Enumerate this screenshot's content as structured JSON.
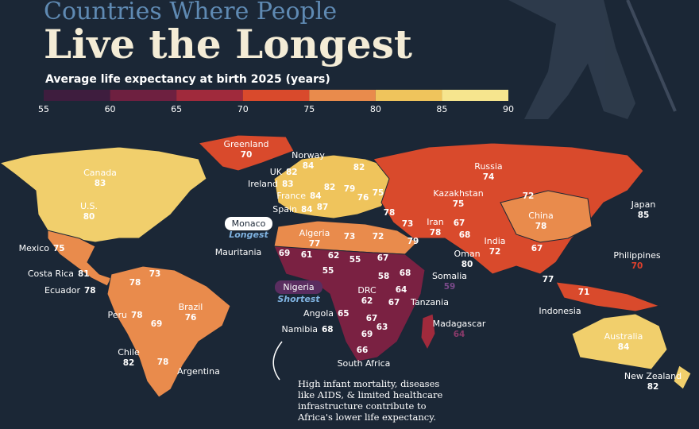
{
  "title_line1": "Countries Where People",
  "title_line2": "Live the Longest",
  "subtitle": "Average life expectancy at birth 2025 (years)",
  "scale": {
    "ticks": [
      55,
      60,
      65,
      70,
      75,
      80,
      85,
      90
    ],
    "colors": [
      "#3e1d3e",
      "#6e2040",
      "#a02a3c",
      "#d94a2c",
      "#e98b4c",
      "#efc45c",
      "#f6e58e"
    ]
  },
  "labels": [
    {
      "name": "Greenland",
      "value": 70
    },
    {
      "name": "Norway",
      "value": 84
    },
    {
      "value": 82
    },
    {
      "name": "UK",
      "value": 82
    },
    {
      "name": "Ireland",
      "value": 83
    },
    {
      "value": 82
    },
    {
      "value": 79
    },
    {
      "name": "France",
      "value": 84
    },
    {
      "value": 76
    },
    {
      "value": 75
    },
    {
      "name": "Spain",
      "value": 84
    },
    {
      "value": 87
    },
    {
      "value": 78
    },
    {
      "name": "Russia",
      "value": 74
    },
    {
      "value": 72
    },
    {
      "name": "Kazakhstan",
      "value": 75
    },
    {
      "name": "Canada",
      "value": 83
    },
    {
      "name": "U.S.",
      "value": 80
    },
    {
      "name": "Japan",
      "value": 85
    },
    {
      "name": "China",
      "value": 78
    },
    {
      "name": "Iran",
      "value": 78
    },
    {
      "value": 73
    },
    {
      "value": 67
    },
    {
      "value": 68
    },
    {
      "name": "Algeria",
      "value": 77
    },
    {
      "value": 73
    },
    {
      "value": 72
    },
    {
      "value": 79
    },
    {
      "name": "India",
      "value": 72
    },
    {
      "value": 67
    },
    {
      "name": "Oman",
      "value": 80
    },
    {
      "name": "Mexico",
      "value": 75
    },
    {
      "name": "Mauritania"
    },
    {
      "value": 69
    },
    {
      "value": 61
    },
    {
      "value": 62
    },
    {
      "value": 55
    },
    {
      "value": 67
    },
    {
      "name": "Philippines",
      "value": 70,
      "value_color": "#e0402c"
    },
    {
      "value": 55
    },
    {
      "value": 58
    },
    {
      "value": 68
    },
    {
      "value": 77
    },
    {
      "name": "Costa Rica",
      "value": 81
    },
    {
      "name": "Somalia",
      "value": 59,
      "value_color": "#7a4a8a"
    },
    {
      "value": 64
    },
    {
      "name": "Ecuador",
      "value": 78
    },
    {
      "value": 78
    },
    {
      "value": 73
    },
    {
      "name": "DRC",
      "value": 62
    },
    {
      "name": "Tanzania"
    },
    {
      "value": 67
    },
    {
      "value": 71
    },
    {
      "name": "Indonesia"
    },
    {
      "name": "Brazil",
      "value": 76
    },
    {
      "name": "Angola",
      "value": 65
    },
    {
      "value": 67
    },
    {
      "name": "Peru",
      "value": 78
    },
    {
      "value": 69
    },
    {
      "name": "Madagascar",
      "value": 64,
      "value_color": "#8a3a6a"
    },
    {
      "name": "Namibia",
      "value": 68
    },
    {
      "value": 69
    },
    {
      "value": 63
    },
    {
      "name": "Australia",
      "value": 84
    },
    {
      "name": "Chile",
      "value": 82
    },
    {
      "value": 78
    },
    {
      "name": "Argentina"
    },
    {
      "value": 66
    },
    {
      "name": "South Africa"
    },
    {
      "name": "New Zealand",
      "value": 82
    }
  ],
  "callouts": {
    "longest": {
      "name": "Monaco",
      "tag": "Longest"
    },
    "shortest": {
      "name": "Nigeria",
      "tag": "Shortest"
    }
  },
  "note": [
    "High infant mortality, diseases",
    "like AIDS, & limited healthcare",
    "infrastructure contribute to",
    "Africa's lower life expectancy."
  ]
}
